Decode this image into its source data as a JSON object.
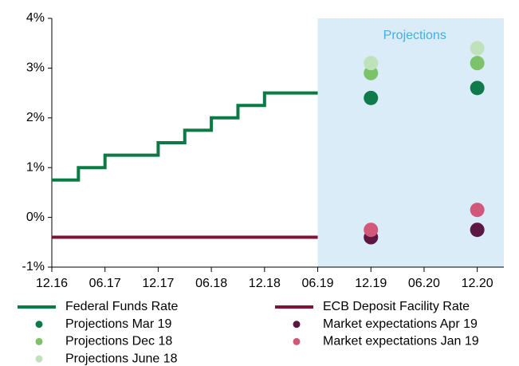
{
  "chart_data": {
    "type": "line",
    "xlim": [
      "2016-12",
      "2021-03"
    ],
    "ylim": [
      -1,
      4
    ],
    "yticks": [
      {
        "value": -1,
        "label": "-1%"
      },
      {
        "value": 0,
        "label": "0%"
      },
      {
        "value": 1,
        "label": "1%"
      },
      {
        "value": 2,
        "label": "2%"
      },
      {
        "value": 3,
        "label": "3%"
      },
      {
        "value": 4,
        "label": "4%"
      }
    ],
    "xticks": [
      {
        "value": "2016-12",
        "label": "12.16"
      },
      {
        "value": "2017-06",
        "label": "06.17"
      },
      {
        "value": "2017-12",
        "label": "12.17"
      },
      {
        "value": "2018-06",
        "label": "06.18"
      },
      {
        "value": "2018-12",
        "label": "12.18"
      },
      {
        "value": "2019-06",
        "label": "06.19"
      },
      {
        "value": "2019-12",
        "label": "12.19"
      },
      {
        "value": "2020-06",
        "label": "06.20"
      },
      {
        "value": "2020-12",
        "label": "12.20"
      }
    ],
    "shaded_region": {
      "from": "2019-06",
      "label": "Projections",
      "color": "#d9ecf8",
      "label_color": "#45aee0"
    },
    "series": [
      {
        "name": "Federal Funds Rate",
        "kind": "step",
        "color": "#0b7a45",
        "x": [
          "2016-12",
          "2017-03",
          "2017-06",
          "2017-12",
          "2018-03",
          "2018-06",
          "2018-09",
          "2018-12",
          "2019-06"
        ],
        "values": [
          0.75,
          1.0,
          1.25,
          1.5,
          1.75,
          2.0,
          2.25,
          2.5,
          2.5
        ]
      },
      {
        "name": "ECB Deposit Facility Rate",
        "kind": "step",
        "color": "#7b1535",
        "x": [
          "2016-12",
          "2019-06"
        ],
        "values": [
          -0.4,
          -0.4
        ]
      },
      {
        "name": "Projections Mar 19",
        "kind": "scatter",
        "color": "#0f7a4a",
        "x": [
          "2019-12",
          "2020-12"
        ],
        "values": [
          2.4,
          2.6
        ]
      },
      {
        "name": "Market expectations Apr 19",
        "kind": "scatter",
        "color": "#5c1742",
        "x": [
          "2019-12",
          "2020-12"
        ],
        "values": [
          -0.4,
          -0.25
        ]
      },
      {
        "name": "Projections Dec 18",
        "kind": "scatter",
        "color": "#7cc26a",
        "x": [
          "2019-12",
          "2020-12"
        ],
        "values": [
          2.9,
          3.1
        ]
      },
      {
        "name": "Market expectations Jan 19",
        "kind": "scatter",
        "color": "#d2587b",
        "x": [
          "2019-12",
          "2020-12"
        ],
        "values": [
          -0.25,
          0.15
        ]
      },
      {
        "name": "Projections June 18",
        "kind": "scatter",
        "color": "#bfe2bb",
        "x": [
          "2019-12",
          "2020-12"
        ],
        "values": [
          3.1,
          3.4
        ]
      }
    ]
  }
}
